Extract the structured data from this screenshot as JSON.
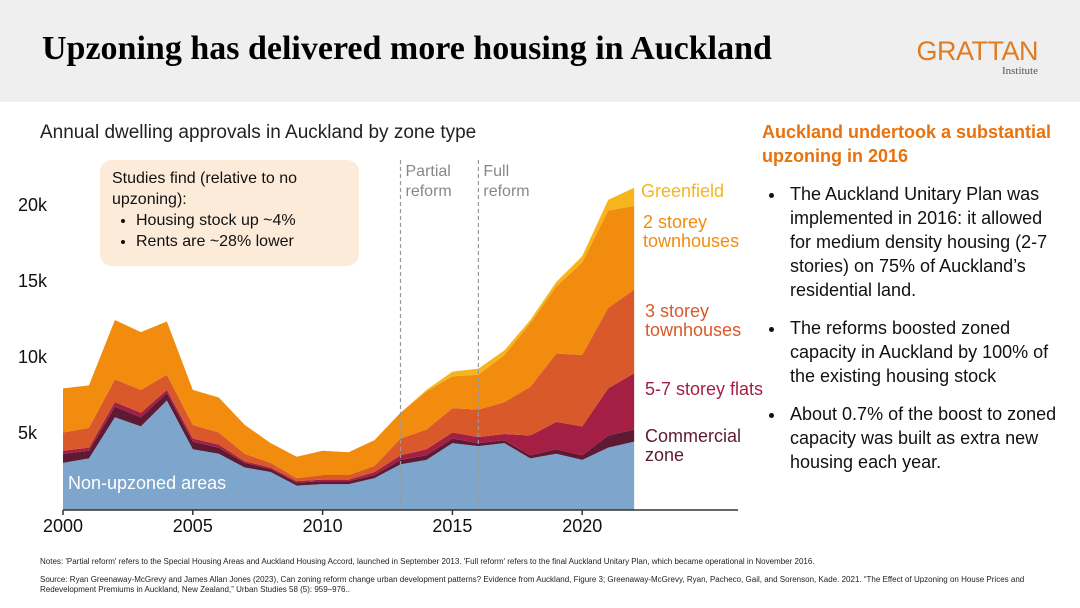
{
  "header": {
    "title": "Upzoning has delivered more housing in Auckland",
    "logo": "GRATTAN",
    "logo_sub": "Institute"
  },
  "chart_data": {
    "type": "stacked-area",
    "title": "Annual dwelling approvals in Auckland by zone type",
    "x": [
      2000,
      2001,
      2002,
      2003,
      2004,
      2005,
      2006,
      2007,
      2008,
      2009,
      2010,
      2011,
      2012,
      2013,
      2014,
      2015,
      2016,
      2017,
      2018,
      2019,
      2020,
      2021,
      2022
    ],
    "series": [
      {
        "name": "Non-upzoned areas",
        "color": "#7ea6cc",
        "values": [
          3100,
          3400,
          6100,
          5500,
          7200,
          4000,
          3700,
          2800,
          2500,
          1600,
          1700,
          1700,
          2100,
          3000,
          3300,
          4400,
          4200,
          4400,
          3400,
          3700,
          3300,
          4100,
          4500
        ]
      },
      {
        "name": "Commercial zone",
        "color": "#5e1a33",
        "values": [
          600,
          500,
          700,
          600,
          500,
          500,
          400,
          300,
          200,
          200,
          200,
          200,
          200,
          300,
          300,
          300,
          200,
          200,
          200,
          300,
          300,
          800,
          800
        ]
      },
      {
        "name": "5-7 storey flats",
        "color": "#a51f45",
        "values": [
          200,
          200,
          300,
          300,
          200,
          200,
          200,
          100,
          100,
          100,
          100,
          100,
          200,
          300,
          400,
          400,
          400,
          400,
          1300,
          1800,
          1900,
          3100,
          3700
        ]
      },
      {
        "name": "3 storey townhouses",
        "color": "#d9592a",
        "values": [
          1200,
          1300,
          1500,
          1500,
          1000,
          900,
          800,
          500,
          300,
          200,
          300,
          300,
          400,
          1100,
          1300,
          1600,
          1800,
          2100,
          3200,
          4500,
          4700,
          5300,
          5500
        ]
      },
      {
        "name": "2 storey townhouses",
        "color": "#f28c0f",
        "values": [
          2900,
          2800,
          3900,
          3800,
          3500,
          2300,
          2300,
          1900,
          1300,
          1400,
          1600,
          1500,
          1700,
          1700,
          2500,
          2100,
          2300,
          3100,
          4200,
          4400,
          6100,
          6400,
          5500
        ]
      },
      {
        "name": "Greenfield",
        "color": "#f6b51e",
        "values": [
          0,
          0,
          0,
          0,
          0,
          0,
          0,
          0,
          0,
          0,
          0,
          0,
          0,
          0,
          100,
          300,
          400,
          300,
          200,
          300,
          400,
          700,
          1200
        ]
      }
    ],
    "xlim": [
      2000,
      2026
    ],
    "xticks": [
      2000,
      2005,
      2010,
      2015,
      2020
    ],
    "ylim": [
      0,
      22500
    ],
    "yticks": [
      {
        "value": 5000,
        "label": "5k"
      },
      {
        "value": 10000,
        "label": "10k"
      },
      {
        "value": 15000,
        "label": "15k"
      },
      {
        "value": 20000,
        "label": "20k"
      }
    ],
    "events": [
      {
        "label": "Partial reform",
        "x": 2013
      },
      {
        "label": "Full reform",
        "x": 2016
      }
    ],
    "annotation": {
      "text": "Studies find (relative to no upzoning):",
      "bullets": [
        "Housing stock up ~4%",
        "Rents are ~28% lower"
      ]
    }
  },
  "sidebar": {
    "heading": "Auckland undertook a substantial upzoning in 2016",
    "bullets": [
      "The Auckland Unitary Plan was implemented in 2016: it allowed for medium density housing (2-7 stories) on 75% of Auckland’s residential land.",
      "The reforms boosted zoned capacity in Auckland by 100% of the existing housing stock",
      "About 0.7% of the boost to zoned capacity was built as extra new housing each year."
    ]
  },
  "notes": [
    "Notes: 'Partial reform' refers to the Special Housing Areas and Auckland Housing Accord, launched in September 2013. 'Full reform' refers to the final Auckland Unitary Plan, which became operational in November 2016.",
    "Source: Ryan Greenaway-McGrevy and James Allan Jones (2023), Can zoning reform change urban development patterns? Evidence from Auckland, Figure 3; Greenaway-McGrevy, Ryan, Pacheco, Gail, and  Sorenson, Kade. 2021. “The Effect of Upzoning on House Prices and Redevelopment Premiums in Auckland, New Zealand,” Urban Studies 58 (5): 959–976.."
  ]
}
